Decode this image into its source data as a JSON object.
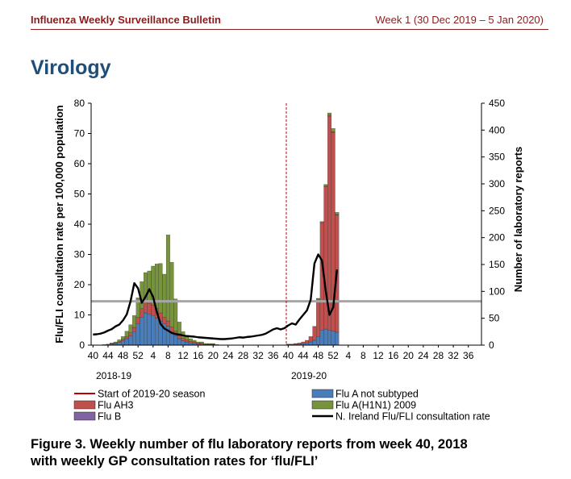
{
  "header": {
    "title": "Influenza Weekly Surveillance Bulletin",
    "week": "Week 1  (30 Dec 2019 – 5 Jan 2020)"
  },
  "section_title": "Virology",
  "caption": {
    "line1": "Figure 3. Weekly number of flu laboratory reports from week 40, 2018",
    "line2": "with weekly GP consultation rates for ‘flu/FLI’"
  },
  "colors": {
    "header": "#8b1c1c",
    "section": "#1f4e79",
    "flu_a_not_subtyped": "#4a7ebb",
    "flu_ah3": "#c0504d",
    "flu_b": "#8064a2",
    "flu_ah1n1": "#77933c",
    "consultation_line": "#000000",
    "season_marker": "#c00000",
    "threshold": "#a6a6a6"
  },
  "chart_data": {
    "type": "bar",
    "stacked": true,
    "ylabel": "Flu/FLI consultation rate per 100,000 population",
    "y2label": "Number of laboratory reports",
    "ylim": [
      0,
      80
    ],
    "y2lim": [
      0,
      450
    ],
    "yticks": [
      "0",
      "10",
      "20",
      "30",
      "40",
      "50",
      "60",
      "70",
      "80"
    ],
    "y2ticks": [
      "0",
      "50",
      "100",
      "150",
      "200",
      "250",
      "300",
      "350",
      "400",
      "450"
    ],
    "xtick_labels": [
      "40",
      "44",
      "48",
      "52",
      "4",
      "8",
      "12",
      "16",
      "20",
      "24",
      "28",
      "32",
      "36",
      "40",
      "44",
      "48",
      "52",
      "4",
      "8",
      "12",
      "16",
      "20",
      "24",
      "28",
      "32",
      "36"
    ],
    "season_labels": [
      "2018-19",
      "2019-20"
    ],
    "season_start_label": "Start of 2019-20 season",
    "season_start_week_index": 52,
    "threshold_rate": 14.5,
    "weeks": [
      "40",
      "41",
      "42",
      "43",
      "44",
      "45",
      "46",
      "47",
      "48",
      "49",
      "50",
      "51",
      "52",
      "1",
      "2",
      "3",
      "4",
      "5",
      "6",
      "7",
      "8",
      "9",
      "10",
      "11",
      "12",
      "13",
      "14",
      "15",
      "16",
      "17",
      "18",
      "19",
      "20",
      "21",
      "22",
      "23",
      "24",
      "25",
      "26",
      "27",
      "28",
      "29",
      "30",
      "31",
      "32",
      "33",
      "34",
      "35",
      "36",
      "37",
      "38",
      "39",
      "40",
      "41",
      "42",
      "43",
      "44",
      "45",
      "46",
      "47",
      "48",
      "49",
      "50",
      "51",
      "52",
      "1"
    ],
    "series": [
      {
        "name": "Flu A not subtyped",
        "axis": "right",
        "values": [
          0,
          0,
          0,
          1,
          1,
          2,
          3,
          5,
          8,
          12,
          17,
          25,
          40,
          52,
          60,
          58,
          55,
          50,
          45,
          40,
          35,
          25,
          18,
          12,
          8,
          6,
          4,
          3,
          2,
          2,
          1,
          1,
          1,
          0,
          0,
          0,
          0,
          0,
          0,
          0,
          0,
          0,
          0,
          0,
          0,
          0,
          0,
          0,
          0,
          0,
          0,
          0,
          1,
          1,
          2,
          2,
          3,
          4,
          6,
          9,
          16,
          28,
          30,
          28,
          26,
          24
        ]
      },
      {
        "name": "Flu AH3",
        "axis": "right",
        "values": [
          0,
          0,
          0,
          0,
          0,
          1,
          1,
          2,
          3,
          4,
          6,
          8,
          12,
          16,
          20,
          20,
          20,
          18,
          15,
          12,
          10,
          9,
          8,
          6,
          5,
          4,
          3,
          3,
          2,
          2,
          1,
          1,
          1,
          0,
          0,
          0,
          0,
          0,
          0,
          0,
          0,
          0,
          0,
          0,
          0,
          0,
          0,
          0,
          0,
          0,
          0,
          0,
          1,
          1,
          1,
          2,
          3,
          5,
          10,
          25,
          70,
          200,
          265,
          398,
          370,
          218
        ]
      },
      {
        "name": "Flu B",
        "axis": "right",
        "values": [
          0,
          0,
          0,
          0,
          0,
          0,
          0,
          0,
          0,
          0,
          0,
          0,
          0,
          0,
          0,
          0,
          0,
          0,
          0,
          0,
          0,
          0,
          0,
          0,
          0,
          0,
          0,
          0,
          0,
          0,
          0,
          0,
          0,
          0,
          0,
          0,
          0,
          0,
          0,
          0,
          0,
          0,
          0,
          0,
          0,
          0,
          0,
          0,
          0,
          0,
          0,
          0,
          0,
          0,
          0,
          0,
          0,
          0,
          0,
          0,
          0,
          0,
          1,
          2,
          1,
          1
        ]
      },
      {
        "name": "Flu A(H1N1) 2009",
        "axis": "right",
        "values": [
          0,
          0,
          0,
          0,
          1,
          1,
          2,
          3,
          5,
          10,
          15,
          22,
          36,
          50,
          55,
          60,
          72,
          83,
          92,
          80,
          160,
          120,
          60,
          25,
          12,
          8,
          5,
          3,
          2,
          2,
          1,
          1,
          1,
          1,
          0,
          0,
          0,
          0,
          0,
          0,
          0,
          0,
          0,
          0,
          0,
          0,
          0,
          0,
          0,
          0,
          0,
          0,
          0,
          0,
          0,
          0,
          0,
          0,
          0,
          1,
          1,
          2,
          3,
          4,
          6,
          4
        ]
      },
      {
        "name": "N. Ireland Flu/FLI consultation rate",
        "axis": "left",
        "values": [
          3.5,
          3.6,
          3.8,
          4.2,
          4.8,
          5.3,
          6.2,
          6.8,
          8.2,
          10.2,
          14.5,
          20.5,
          18.8,
          14,
          16,
          18.5,
          16,
          11,
          7,
          5.5,
          4.8,
          4,
          3.7,
          3.5,
          3.2,
          3,
          2.9,
          2.8,
          2.6,
          2.5,
          2.4,
          2.3,
          2.2,
          2.1,
          2,
          2,
          2.1,
          2.2,
          2.4,
          2.6,
          2.5,
          2.7,
          2.8,
          3,
          3.2,
          3.4,
          3.8,
          4.5,
          5.2,
          5.6,
          5.2,
          5.6,
          6.5,
          7.2,
          6.8,
          8.5,
          10,
          11.5,
          15,
          27,
          30,
          28,
          18,
          10,
          12.5,
          25
        ]
      }
    ],
    "legend": {
      "placement": "bottom",
      "entries": [
        "Start of 2019-20 season",
        "Flu A not subtyped",
        "Flu AH3",
        "Flu A(H1N1) 2009",
        "Flu B",
        "N. Ireland Flu/FLI consultation rate"
      ]
    }
  }
}
